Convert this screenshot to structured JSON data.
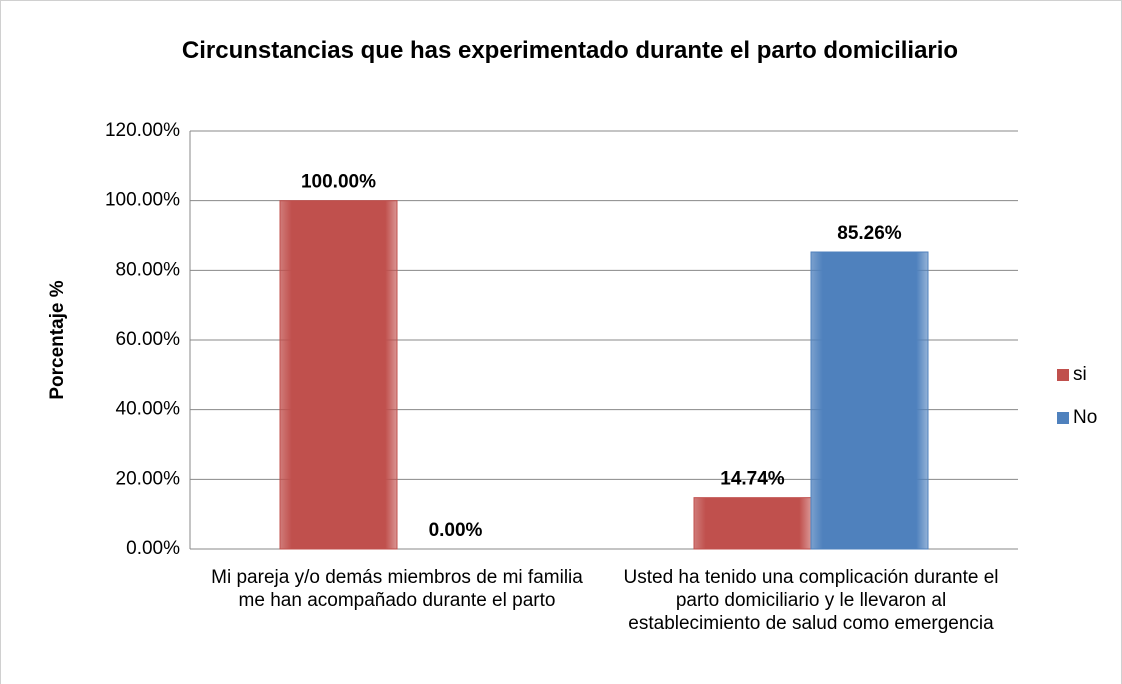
{
  "chart_data": {
    "type": "bar",
    "title": "Circunstancias que has experimentado durante el parto domiciliario",
    "y_label": "Porcentaje %",
    "categories": [
      "Mi pareja y/o demás miembros de mi familia me han acompañado durante el parto",
      "Usted ha tenido una complicación durante el parto domiciliario y le llevaron al establecimiento de salud como emergencia"
    ],
    "series": [
      {
        "name": "si",
        "color": "#c0504d",
        "values": [
          100,
          14.74
        ],
        "value_labels": [
          "100.00%",
          "14.74%"
        ]
      },
      {
        "name": "No",
        "color": "#4f81bd",
        "values": [
          0,
          85.26
        ],
        "value_labels": [
          "0.00%",
          "85.26%"
        ]
      }
    ],
    "ylim": [
      0,
      120
    ],
    "yticks": [
      {
        "value": 0,
        "label": "0.00%"
      },
      {
        "value": 20,
        "label": "20.00%"
      },
      {
        "value": 40,
        "label": "40.00%"
      },
      {
        "value": 60,
        "label": "60.00%"
      },
      {
        "value": 80,
        "label": "80.00%"
      },
      {
        "value": 100,
        "label": "100.00%"
      },
      {
        "value": 120,
        "label": "120.00%"
      }
    ],
    "grid": true,
    "legend": "right"
  }
}
